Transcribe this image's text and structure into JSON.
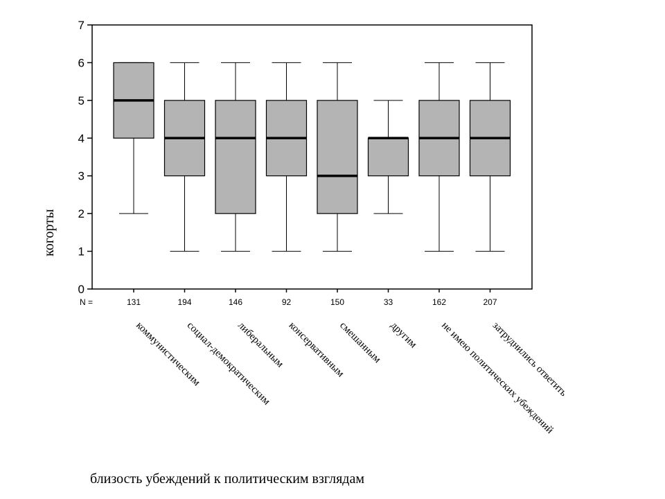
{
  "chart_data": {
    "type": "boxplot",
    "ylabel": "когорты",
    "xlabel": "близость убеждений к политическим взглядам",
    "ylim": [
      0,
      7
    ],
    "yticks": [
      0,
      1,
      2,
      3,
      4,
      5,
      6,
      7
    ],
    "n_prefix": "N =",
    "grid": false,
    "box_color": "#b4b4b4",
    "categories": [
      "коммунистическим",
      "социал-демократическим",
      "либеральным",
      "консервативным",
      "смешанным",
      "другим",
      "не имею политических убеждений",
      "затруднились ответить"
    ],
    "n": [
      "131",
      "194",
      "146",
      "92",
      "150",
      "33",
      "162",
      "207"
    ],
    "boxes": [
      {
        "min": 2,
        "q1": 4,
        "median": 5,
        "q3": 6,
        "max": 6
      },
      {
        "min": 1,
        "q1": 3,
        "median": 4,
        "q3": 5,
        "max": 6
      },
      {
        "min": 1,
        "q1": 2,
        "median": 4,
        "q3": 5,
        "max": 6
      },
      {
        "min": 1,
        "q1": 3,
        "median": 4,
        "q3": 5,
        "max": 6
      },
      {
        "min": 1,
        "q1": 2,
        "median": 3,
        "q3": 5,
        "max": 6
      },
      {
        "min": 2,
        "q1": 3,
        "median": 4,
        "q3": 4,
        "max": 5
      },
      {
        "min": 1,
        "q1": 3,
        "median": 4,
        "q3": 5,
        "max": 6
      },
      {
        "min": 1,
        "q1": 3,
        "median": 4,
        "q3": 5,
        "max": 6
      }
    ]
  }
}
